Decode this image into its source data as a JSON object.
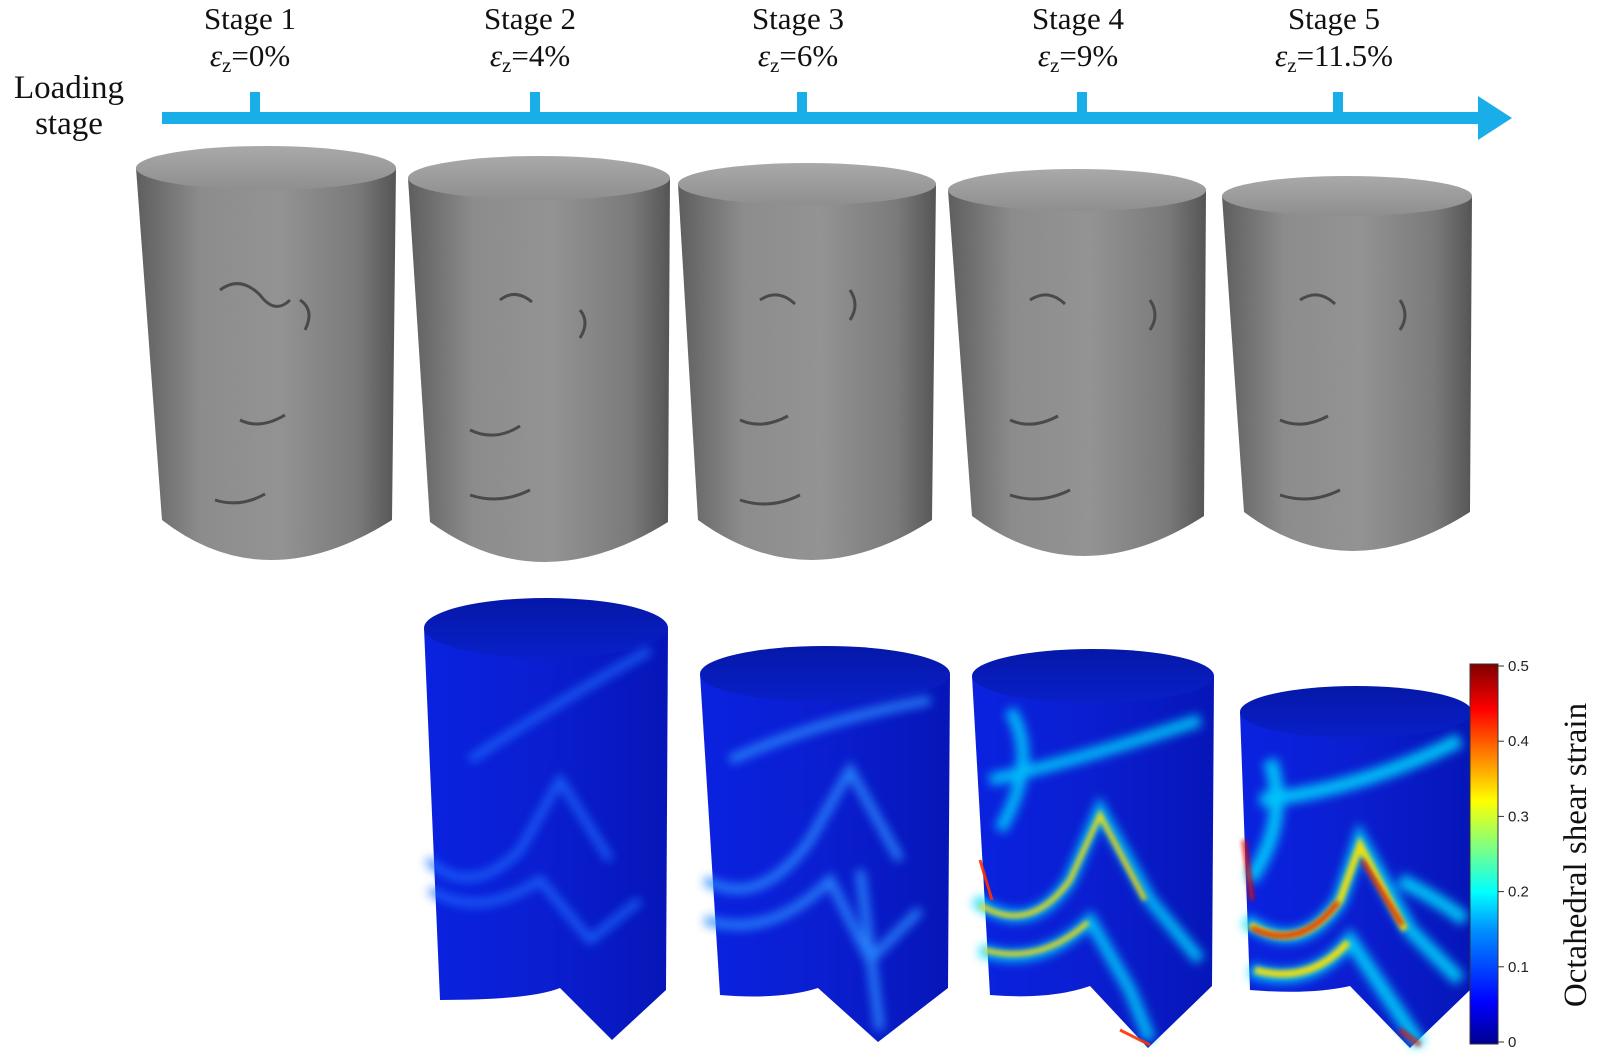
{
  "axis_label": [
    "Loading",
    "stage"
  ],
  "stages": [
    {
      "name": "Stage 1",
      "strain_symbol": "ε",
      "strain_sub": "z",
      "strain_value": "=0%"
    },
    {
      "name": "Stage 2",
      "strain_symbol": "ε",
      "strain_sub": "z",
      "strain_value": "=4%"
    },
    {
      "name": "Stage 3",
      "strain_symbol": "ε",
      "strain_sub": "z",
      "strain_value": "=6%"
    },
    {
      "name": "Stage 4",
      "strain_symbol": "ε",
      "strain_sub": "z",
      "strain_value": "=9%"
    },
    {
      "name": "Stage 5",
      "strain_symbol": "ε",
      "strain_sub": "z",
      "strain_value": "=11.5%"
    }
  ],
  "colorbar": {
    "title": "Octahedral shear strain",
    "ticks": [
      "0.5",
      "0.4",
      "0.3",
      "0.2",
      "0.1",
      "0"
    ],
    "colors": [
      "#00008f",
      "#0000ff",
      "#00a0ff",
      "#00ffff",
      "#80ff80",
      "#ffff00",
      "#ff8000",
      "#ff0000",
      "#800000"
    ]
  },
  "colors": {
    "arrow": "#1aaee8",
    "specimen_gray": "#8a8a8a",
    "strain_base": "#0a1fd8"
  }
}
